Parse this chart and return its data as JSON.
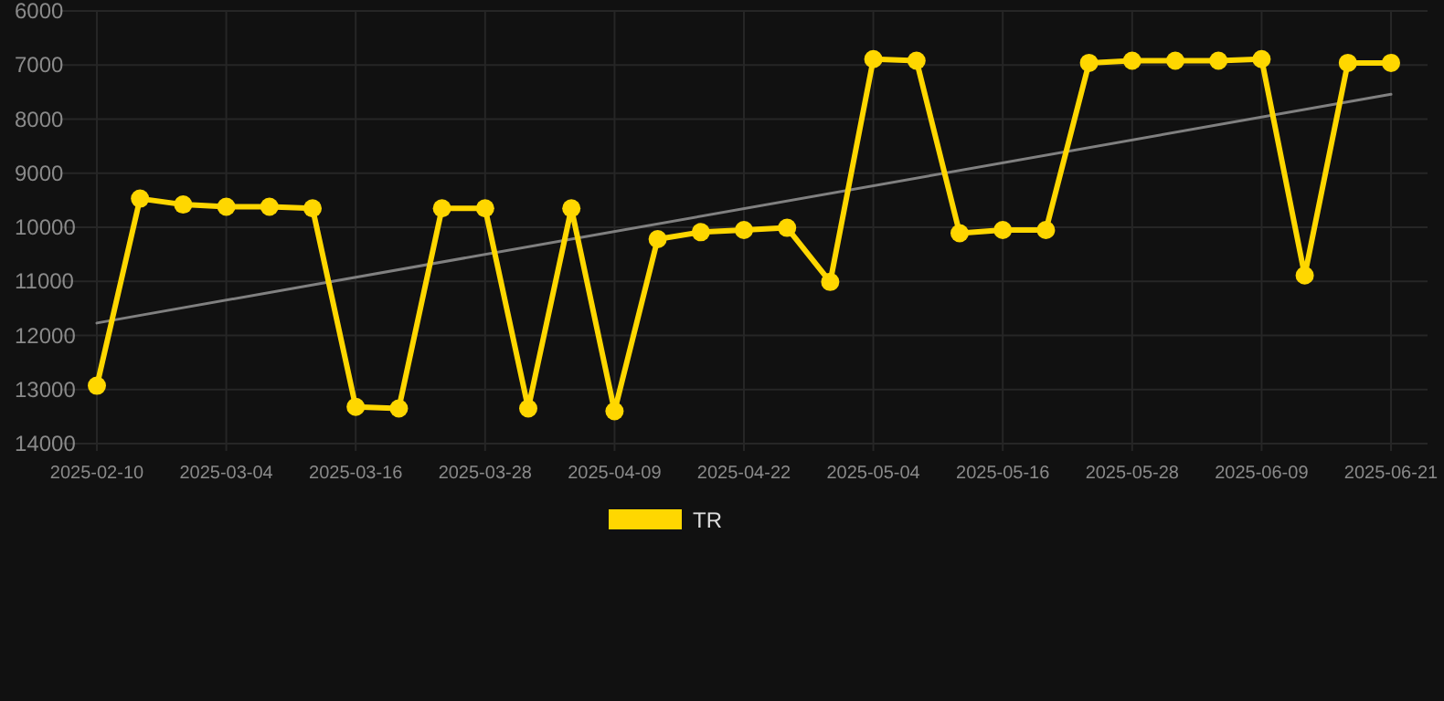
{
  "chart_data": {
    "type": "line",
    "categories": [
      "2025-02-10",
      null,
      null,
      "2025-03-04",
      null,
      null,
      "2025-03-16",
      null,
      null,
      "2025-03-28",
      null,
      null,
      "2025-04-09",
      null,
      null,
      "2025-04-22",
      null,
      null,
      "2025-05-04",
      null,
      null,
      "2025-05-16",
      null,
      null,
      "2025-05-28",
      null,
      null,
      "2025-06-09",
      null,
      null,
      "2025-06-21"
    ],
    "series": [
      {
        "name": "TR",
        "color": "#ffd700",
        "marker": "circle",
        "values": [
          12930,
          9470,
          9580,
          9620,
          9620,
          9650,
          13320,
          13350,
          9650,
          9650,
          13350,
          9650,
          13400,
          10220,
          10090,
          10050,
          10010,
          11010,
          6890,
          6920,
          10110,
          10050,
          10050,
          6960,
          6920,
          6920,
          6920,
          6890,
          10890,
          6960,
          6960
        ]
      },
      {
        "type": "line",
        "color": "#808080",
        "marker": "none",
        "values": [
          11770,
          null,
          null,
          null,
          null,
          null,
          null,
          null,
          null,
          null,
          null,
          null,
          null,
          null,
          null,
          null,
          null,
          null,
          null,
          null,
          null,
          null,
          null,
          null,
          null,
          null,
          null,
          null,
          null,
          null,
          7540
        ]
      }
    ],
    "ylim": [
      14000,
      6000
    ],
    "yticks": [
      6000,
      7000,
      8000,
      9000,
      10000,
      11000,
      12000,
      13000,
      14000
    ],
    "grid": true,
    "legend": "bottom"
  }
}
